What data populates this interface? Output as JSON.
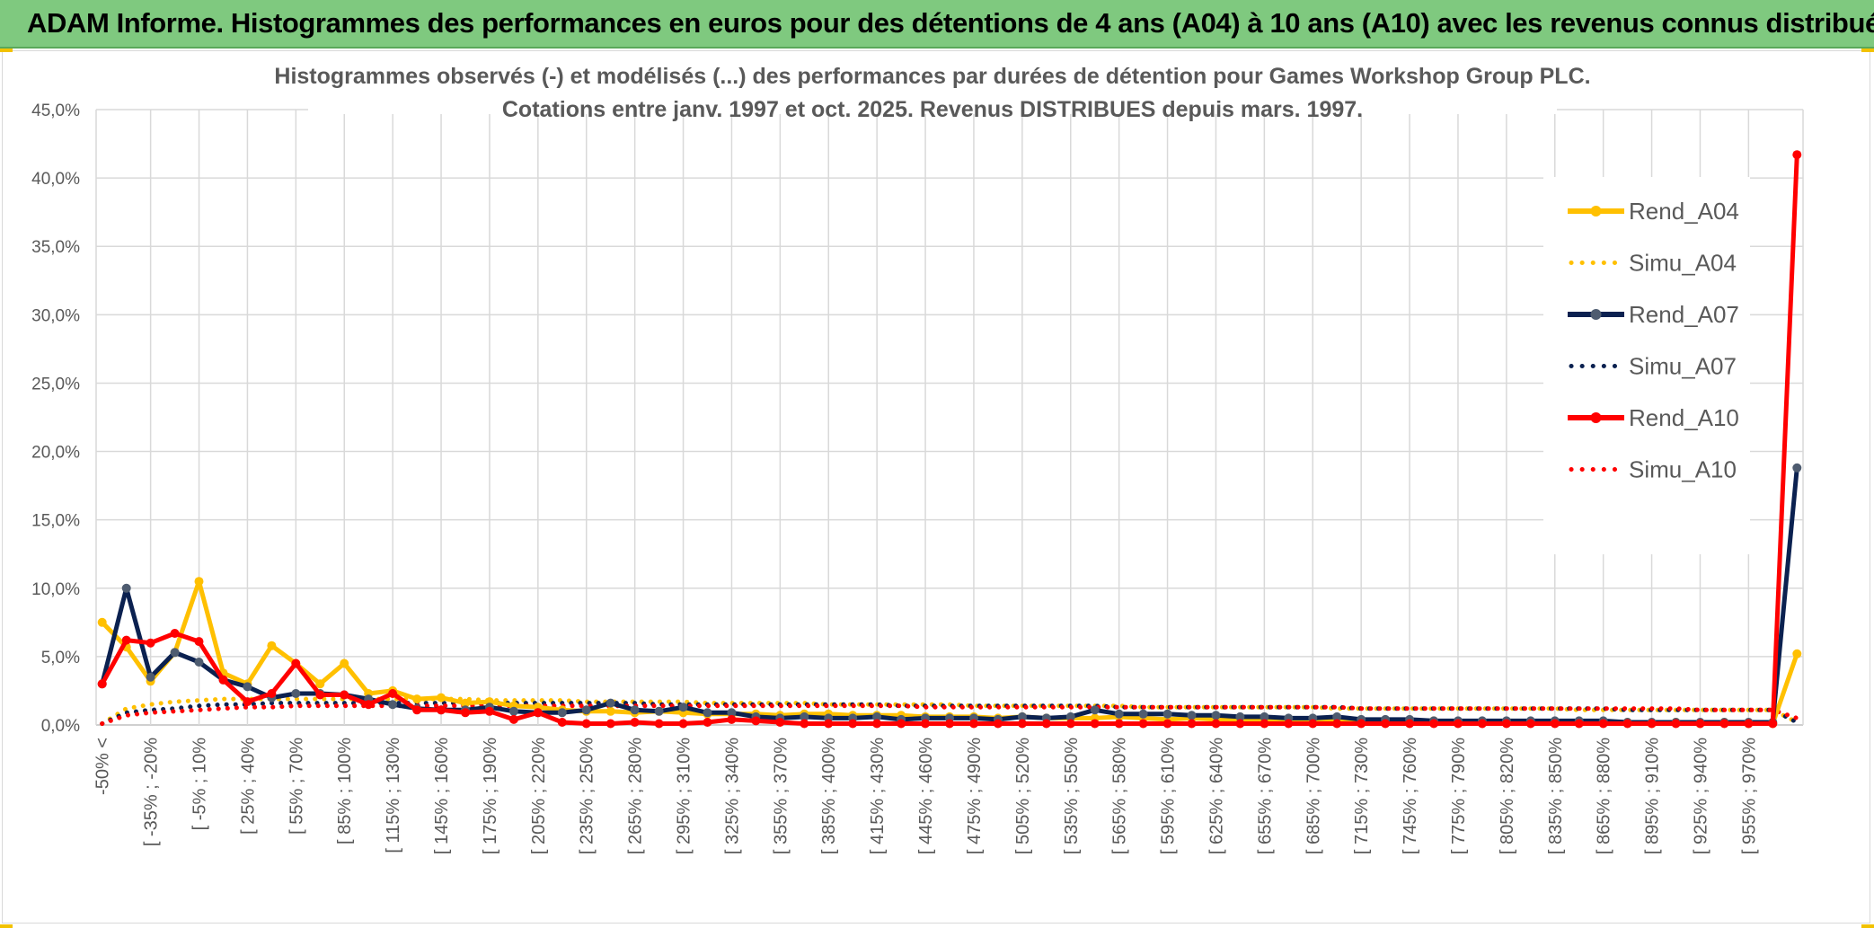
{
  "header": {
    "title": "ADAM Informe. Histogrammes des performances en euros pour des détentions de 4 ans (A04) à 10 ans (A10) avec les revenus connus distribués"
  },
  "colors": {
    "header_bg": "#7fc97f",
    "A04": "#ffc000",
    "A07": "#0b2150",
    "A07_marker": "#4e5c70",
    "A10": "#ff0000",
    "grid": "#d9d9d9",
    "text": "#595959"
  },
  "chart_data": {
    "type": "line",
    "title": "Histogrammes observés (-) et modélisés (...) des performances par durées de détention pour Games Workshop Group PLC.",
    "subtitle": "Cotations entre janv. 1997 et oct. 2025. Revenus DISTRIBUES depuis mars. 1997.",
    "ylim": [
      0,
      45
    ],
    "yticks": [
      "0,0%",
      "5,0%",
      "10,0%",
      "15,0%",
      "20,0%",
      "25,0%",
      "30,0%",
      "35,0%",
      "40,0%",
      "45,0%"
    ],
    "grid": true,
    "legend_position": "right",
    "x_labels": [
      {
        "i": 0,
        "text": "-50% <"
      },
      {
        "i": 2,
        "text": "[ -35% ; -20%"
      },
      {
        "i": 4,
        "text": "[ -5% ; 10%"
      },
      {
        "i": 6,
        "text": "[ 25% ; 40%"
      },
      {
        "i": 8,
        "text": "[ 55% ; 70%"
      },
      {
        "i": 10,
        "text": "[ 85% ; 100%"
      },
      {
        "i": 12,
        "text": "[ 115% ; 130%"
      },
      {
        "i": 14,
        "text": "[ 145% ; 160%"
      },
      {
        "i": 16,
        "text": "[ 175% ; 190%"
      },
      {
        "i": 18,
        "text": "[ 205% ; 220%"
      },
      {
        "i": 20,
        "text": "[ 235% ; 250%"
      },
      {
        "i": 22,
        "text": "[ 265% ; 280%"
      },
      {
        "i": 24,
        "text": "[ 295% ; 310%"
      },
      {
        "i": 26,
        "text": "[ 325% ; 340%"
      },
      {
        "i": 28,
        "text": "[ 355% ; 370%"
      },
      {
        "i": 30,
        "text": "[ 385% ; 400%"
      },
      {
        "i": 32,
        "text": "[ 415% ; 430%"
      },
      {
        "i": 34,
        "text": "[ 445% ; 460%"
      },
      {
        "i": 36,
        "text": "[ 475% ; 490%"
      },
      {
        "i": 38,
        "text": "[ 505% ; 520%"
      },
      {
        "i": 40,
        "text": "[ 535% ; 550%"
      },
      {
        "i": 42,
        "text": "[ 565% ; 580%"
      },
      {
        "i": 44,
        "text": "[ 595% ; 610%"
      },
      {
        "i": 46,
        "text": "[ 625% ; 640%"
      },
      {
        "i": 48,
        "text": "[ 655% ; 670%"
      },
      {
        "i": 50,
        "text": "[ 685% ; 700%"
      },
      {
        "i": 52,
        "text": "[ 715% ; 730%"
      },
      {
        "i": 54,
        "text": "[ 745% ; 760%"
      },
      {
        "i": 56,
        "text": "[ 775% ; 790%"
      },
      {
        "i": 58,
        "text": "[ 805% ; 820%"
      },
      {
        "i": 60,
        "text": "[ 835% ; 850%"
      },
      {
        "i": 62,
        "text": "[ 865% ; 880%"
      },
      {
        "i": 64,
        "text": "[ 895% ; 910%"
      },
      {
        "i": 66,
        "text": "[ 925% ; 940%"
      },
      {
        "i": 68,
        "text": "[ 955% ; 970%"
      }
    ],
    "series": [
      {
        "name": "Rend_A04",
        "style": "solid",
        "color": "#ffc000",
        "values": [
          7.5,
          5.7,
          3.2,
          5.3,
          10.5,
          3.8,
          3.0,
          5.8,
          4.5,
          3.0,
          4.5,
          2.3,
          2.5,
          1.9,
          2.0,
          1.6,
          1.7,
          1.4,
          1.3,
          1.1,
          1.0,
          1.0,
          0.9,
          1.0,
          0.9,
          0.8,
          0.8,
          0.8,
          0.7,
          0.8,
          0.8,
          0.7,
          0.7,
          0.7,
          0.6,
          0.6,
          0.6,
          0.5,
          0.6,
          0.5,
          0.5,
          0.5,
          0.6,
          0.5,
          0.4,
          0.5,
          0.4,
          0.4,
          0.4,
          0.3,
          0.3,
          0.3,
          0.3,
          0.3,
          0.3,
          0.3,
          0.2,
          0.2,
          0.2,
          0.2,
          0.2,
          0.2,
          0.2,
          0.2,
          0.1,
          0.2,
          0.1,
          0.2,
          0.1,
          0.1,
          5.2
        ]
      },
      {
        "name": "Simu_A04",
        "style": "dotted",
        "color": "#ffc000",
        "values": [
          0.1,
          1.2,
          1.5,
          1.7,
          1.8,
          1.9,
          1.9,
          1.9,
          1.9,
          1.9,
          1.9,
          1.9,
          1.9,
          1.9,
          1.9,
          1.9,
          1.8,
          1.8,
          1.8,
          1.8,
          1.7,
          1.7,
          1.7,
          1.7,
          1.7,
          1.6,
          1.6,
          1.6,
          1.6,
          1.6,
          1.5,
          1.5,
          1.5,
          1.5,
          1.5,
          1.5,
          1.4,
          1.4,
          1.4,
          1.4,
          1.4,
          1.4,
          1.4,
          1.3,
          1.3,
          1.3,
          1.3,
          1.3,
          1.3,
          1.3,
          1.3,
          1.2,
          1.2,
          1.2,
          1.2,
          1.2,
          1.2,
          1.2,
          1.2,
          1.2,
          1.2,
          1.1,
          1.1,
          1.1,
          1.1,
          1.1,
          1.1,
          1.1,
          1.1,
          1.1,
          0.2
        ]
      },
      {
        "name": "Rend_A07",
        "style": "solid",
        "color": "#0b2150",
        "values": [
          3.0,
          10.0,
          3.5,
          5.3,
          4.6,
          3.3,
          2.8,
          2.0,
          2.3,
          2.3,
          2.2,
          1.9,
          1.5,
          1.2,
          1.1,
          1.1,
          1.3,
          1.0,
          0.9,
          0.9,
          1.1,
          1.6,
          1.1,
          1.0,
          1.3,
          0.9,
          0.9,
          0.6,
          0.5,
          0.6,
          0.5,
          0.5,
          0.6,
          0.4,
          0.5,
          0.5,
          0.5,
          0.4,
          0.6,
          0.5,
          0.6,
          1.1,
          0.8,
          0.8,
          0.8,
          0.7,
          0.7,
          0.6,
          0.6,
          0.5,
          0.5,
          0.6,
          0.4,
          0.4,
          0.4,
          0.3,
          0.3,
          0.3,
          0.3,
          0.3,
          0.3,
          0.3,
          0.3,
          0.2,
          0.2,
          0.2,
          0.2,
          0.2,
          0.2,
          0.2,
          18.8
        ]
      },
      {
        "name": "Simu_A07",
        "style": "dotted",
        "color": "#0b2150",
        "values": [
          0.1,
          0.9,
          1.1,
          1.2,
          1.4,
          1.5,
          1.5,
          1.6,
          1.6,
          1.6,
          1.6,
          1.6,
          1.6,
          1.6,
          1.6,
          1.6,
          1.6,
          1.6,
          1.6,
          1.6,
          1.6,
          1.6,
          1.6,
          1.5,
          1.5,
          1.5,
          1.5,
          1.5,
          1.5,
          1.5,
          1.5,
          1.5,
          1.5,
          1.4,
          1.4,
          1.4,
          1.4,
          1.4,
          1.4,
          1.4,
          1.4,
          1.4,
          1.3,
          1.3,
          1.3,
          1.3,
          1.3,
          1.3,
          1.3,
          1.3,
          1.3,
          1.3,
          1.2,
          1.2,
          1.2,
          1.2,
          1.2,
          1.2,
          1.2,
          1.2,
          1.2,
          1.2,
          1.2,
          1.1,
          1.1,
          1.1,
          1.1,
          1.1,
          1.1,
          1.1,
          0.2
        ]
      },
      {
        "name": "Rend_A10",
        "style": "solid",
        "color": "#ff0000",
        "values": [
          3.0,
          6.2,
          6.0,
          6.7,
          6.1,
          3.3,
          1.7,
          2.3,
          4.5,
          2.2,
          2.2,
          1.5,
          2.3,
          1.1,
          1.1,
          0.9,
          1.0,
          0.4,
          0.9,
          0.2,
          0.1,
          0.1,
          0.2,
          0.1,
          0.1,
          0.2,
          0.4,
          0.3,
          0.2,
          0.1,
          0.1,
          0.1,
          0.1,
          0.1,
          0.1,
          0.1,
          0.1,
          0.1,
          0.1,
          0.1,
          0.1,
          0.1,
          0.1,
          0.1,
          0.1,
          0.1,
          0.1,
          0.1,
          0.1,
          0.1,
          0.1,
          0.1,
          0.1,
          0.1,
          0.1,
          0.1,
          0.1,
          0.1,
          0.1,
          0.1,
          0.1,
          0.1,
          0.1,
          0.1,
          0.1,
          0.1,
          0.1,
          0.1,
          0.1,
          0.1,
          41.7
        ]
      },
      {
        "name": "Simu_A10",
        "style": "dotted",
        "color": "#ff0000",
        "values": [
          0.1,
          0.7,
          0.9,
          1.0,
          1.1,
          1.2,
          1.3,
          1.3,
          1.4,
          1.4,
          1.4,
          1.4,
          1.4,
          1.4,
          1.4,
          1.4,
          1.4,
          1.4,
          1.4,
          1.4,
          1.4,
          1.4,
          1.4,
          1.4,
          1.4,
          1.4,
          1.4,
          1.4,
          1.4,
          1.4,
          1.4,
          1.4,
          1.4,
          1.4,
          1.3,
          1.3,
          1.3,
          1.3,
          1.3,
          1.3,
          1.3,
          1.3,
          1.3,
          1.3,
          1.3,
          1.3,
          1.3,
          1.3,
          1.3,
          1.3,
          1.3,
          1.3,
          1.2,
          1.2,
          1.2,
          1.2,
          1.2,
          1.2,
          1.2,
          1.2,
          1.2,
          1.2,
          1.2,
          1.2,
          1.2,
          1.2,
          1.1,
          1.1,
          1.1,
          1.1,
          0.5
        ]
      }
    ]
  }
}
